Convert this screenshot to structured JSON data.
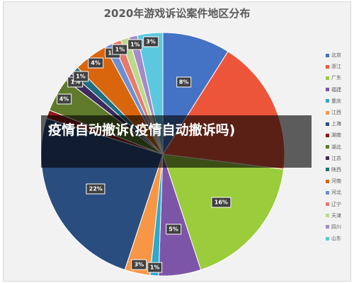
{
  "chart_data": {
    "type": "pie",
    "title": "2020年游戏诉讼案件地区分布",
    "slices": [
      {
        "name": "北京",
        "value": 8,
        "label": "8%",
        "color": "#4472c4"
      },
      {
        "name": "浙江",
        "value": 16,
        "label": "",
        "color": "#ed553b"
      },
      {
        "name": "广东",
        "value": 16,
        "label": "16%",
        "color": "#9bcc3b"
      },
      {
        "name": "福建",
        "value": 5,
        "label": "5%",
        "color": "#7d55a8"
      },
      {
        "name": "重庆",
        "value": 1,
        "label": "1%",
        "color": "#2da9c9"
      },
      {
        "name": "江西",
        "value": 3,
        "label": "3%",
        "color": "#f79646"
      },
      {
        "name": "上海",
        "value": 22,
        "label": "22%",
        "color": "#2a4d7f"
      },
      {
        "name": "湖南",
        "value": 1,
        "label": "",
        "color": "#8b1a1a"
      },
      {
        "name": "湖北",
        "value": 4,
        "label": "4%",
        "color": "#5e7a2a"
      },
      {
        "name": "江苏",
        "value": 1,
        "label": "1%",
        "color": "#3c2a5e"
      },
      {
        "name": "陕西",
        "value": 1,
        "label": "1%",
        "color": "#1f6f80"
      },
      {
        "name": "河南",
        "value": 4,
        "label": "4%",
        "color": "#d9650c"
      },
      {
        "name": "河北",
        "value": 1,
        "label": "1%",
        "color": "#6d8fd0"
      },
      {
        "name": "辽宁",
        "value": 1,
        "label": "1%",
        "color": "#e87a6a"
      },
      {
        "name": "天津",
        "value": 1,
        "label": "",
        "color": "#bcd98a"
      },
      {
        "name": "四川",
        "value": 1,
        "label": "1%",
        "color": "#a48ac8"
      },
      {
        "name": "山东",
        "value": 3,
        "label": "3%",
        "color": "#5bc8e0"
      }
    ],
    "legend_position": "right"
  },
  "banner": {
    "text": "疫情自动撤诉(疫情自动撤诉吗)"
  }
}
